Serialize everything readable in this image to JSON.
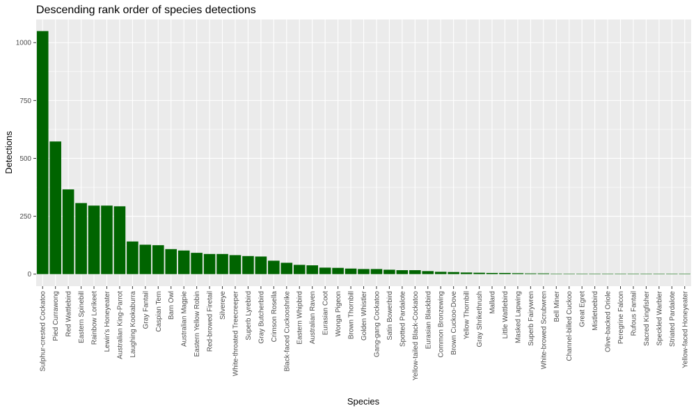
{
  "chart_data": {
    "type": "bar",
    "title": "Descending rank order of species detections",
    "xlabel": "Species",
    "ylabel": "Detections",
    "ylim": [
      -52,
      1100
    ],
    "yticks": [
      0,
      250,
      500,
      750,
      1000
    ],
    "grid": true,
    "legend": "none",
    "colors": {
      "bar": "#006400",
      "panel": "#ebebeb",
      "grid": "#ffffff"
    },
    "categories": [
      "Sulphur-crested Cockatoo",
      "Pied Currawong",
      "Red Wattlebird",
      "Eastern Spinebill",
      "Rainbow Lorikeet",
      "Lewin's Honeyeater",
      "Australian King-Parrot",
      "Laughing Kookaburra",
      "Gray Fantail",
      "Caspian Tern",
      "Barn Owl",
      "Australian Magpie",
      "Eastern Yellow Robin",
      "Red-browed Firetail",
      "Silvereye",
      "White-throated Treecreeper",
      "Superb Lyrebird",
      "Gray Butcherbird",
      "Crimson Rosella",
      "Black-faced Cuckooshrike",
      "Eastern Whipbird",
      "Australian Raven",
      "Eurasian Coot",
      "Wonga Pigeon",
      "Brown Thornbill",
      "Golden Whistler",
      "Gang-gang Cockatoo",
      "Satin Bowerbird",
      "Spotted Pardalote",
      "Yellow-tailed Black-Cockatoo",
      "Eurasian Blackbird",
      "Common Bronzewing",
      "Brown Cuckoo-Dove",
      "Yellow Thornbill",
      "Gray Shrikethrush",
      "Mallard",
      "Little Wattlebird",
      "Masked Lapwing",
      "Superb Fairywren",
      "White-browed Scrubwren",
      "Bell Miner",
      "Channel-billed Cuckoo",
      "Great Egret",
      "Mistletoebird",
      "Olive-backed Oriole",
      "Peregrine Falcon",
      "Rufous Fantail",
      "Sacred Kingfisher",
      "Speckled Warbler",
      "Striated Pardalote",
      "Yellow-faced Honeyeater"
    ],
    "values": [
      1050,
      573,
      366,
      307,
      296,
      296,
      293,
      141,
      127,
      125,
      108,
      102,
      92,
      87,
      87,
      82,
      78,
      76,
      58,
      49,
      40,
      38,
      28,
      27,
      24,
      22,
      22,
      19,
      17,
      17,
      13,
      10,
      9,
      7,
      6,
      5,
      5,
      4,
      3,
      3,
      1,
      1,
      1,
      1,
      1,
      1,
      1,
      1,
      1,
      1,
      1
    ]
  }
}
